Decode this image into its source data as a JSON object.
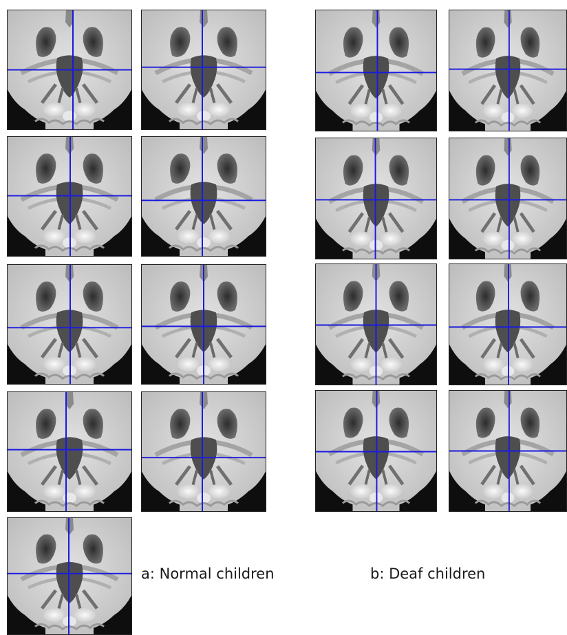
{
  "figure": {
    "captions": {
      "normal": "a: Normal children",
      "deaf": "b: Deaf children"
    },
    "crosshair_color": "#1a1ae0",
    "groups": {
      "normal": {
        "panel_count": 9
      },
      "deaf": {
        "panel_count": 8
      }
    }
  }
}
